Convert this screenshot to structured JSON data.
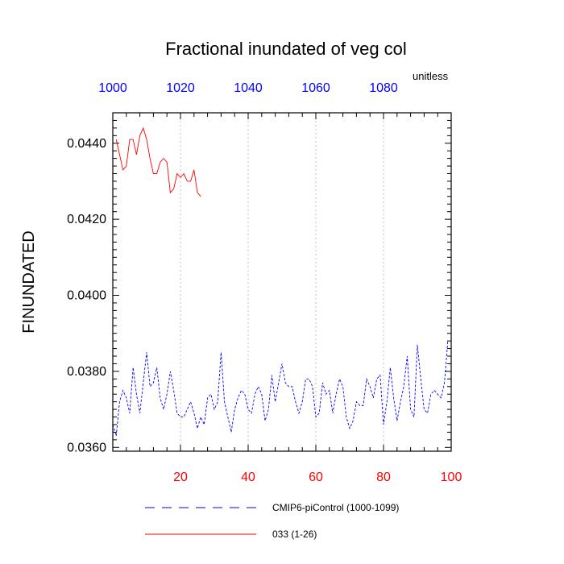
{
  "chart_data": {
    "type": "line",
    "title": "Fractional inundated of veg col",
    "units": "unitless",
    "ylabel": "FINUNDATED",
    "ylim": [
      0.0359,
      0.0448
    ],
    "yticks": [
      "0.0360",
      "0.0380",
      "0.0400",
      "0.0420",
      "0.0440"
    ],
    "ytick_values": [
      0.036,
      0.038,
      0.04,
      0.042,
      0.044
    ],
    "x_bottom": {
      "lim": [
        0,
        100
      ],
      "ticks": [
        20,
        40,
        60,
        80,
        100
      ],
      "color": "#ff0000"
    },
    "x_top": {
      "lim": [
        1000,
        1100
      ],
      "ticks": [
        1000,
        1020,
        1040,
        1060,
        1080
      ],
      "color": "#0000ff"
    },
    "grid": "vertical dashed at top-axis ticks",
    "legend_position": "bottom",
    "series": [
      {
        "name": "CMIP6-piControl (1000-1099)",
        "color": "#0000ff",
        "dash": "dashed",
        "axis": "top",
        "x": [
          1000,
          1001,
          1002,
          1003,
          1004,
          1005,
          1006,
          1007,
          1008,
          1009,
          1010,
          1011,
          1012,
          1013,
          1014,
          1015,
          1016,
          1017,
          1018,
          1019,
          1020,
          1021,
          1022,
          1023,
          1024,
          1025,
          1026,
          1027,
          1028,
          1029,
          1030,
          1031,
          1032,
          1033,
          1034,
          1035,
          1036,
          1037,
          1038,
          1039,
          1040,
          1041,
          1042,
          1043,
          1044,
          1045,
          1046,
          1047,
          1048,
          1049,
          1050,
          1051,
          1052,
          1053,
          1054,
          1055,
          1056,
          1057,
          1058,
          1059,
          1060,
          1061,
          1062,
          1063,
          1064,
          1065,
          1066,
          1067,
          1068,
          1069,
          1070,
          1071,
          1072,
          1073,
          1074,
          1075,
          1076,
          1077,
          1078,
          1079,
          1080,
          1081,
          1082,
          1083,
          1084,
          1085,
          1086,
          1087,
          1088,
          1089,
          1090,
          1091,
          1092,
          1093,
          1094,
          1095,
          1096,
          1097,
          1098,
          1099
        ],
        "values": [
          0.0366,
          0.0363,
          0.0372,
          0.0375,
          0.0373,
          0.0369,
          0.0381,
          0.0374,
          0.0369,
          0.0377,
          0.0385,
          0.0376,
          0.0377,
          0.0381,
          0.0373,
          0.037,
          0.0374,
          0.038,
          0.0375,
          0.0369,
          0.0368,
          0.0368,
          0.037,
          0.0372,
          0.0369,
          0.0365,
          0.0368,
          0.0366,
          0.0373,
          0.0374,
          0.037,
          0.0372,
          0.0385,
          0.0372,
          0.0368,
          0.0364,
          0.037,
          0.0373,
          0.0375,
          0.0374,
          0.037,
          0.0369,
          0.0374,
          0.0376,
          0.0374,
          0.0367,
          0.037,
          0.0379,
          0.0372,
          0.0377,
          0.0382,
          0.0377,
          0.0376,
          0.0376,
          0.0372,
          0.0369,
          0.0372,
          0.0378,
          0.0378,
          0.0376,
          0.0368,
          0.0369,
          0.0377,
          0.0374,
          0.0375,
          0.0369,
          0.0374,
          0.0378,
          0.0376,
          0.0368,
          0.0365,
          0.0367,
          0.0372,
          0.0371,
          0.0371,
          0.0378,
          0.0376,
          0.0373,
          0.0378,
          0.0379,
          0.0366,
          0.0372,
          0.0381,
          0.0373,
          0.0367,
          0.0372,
          0.0376,
          0.0384,
          0.037,
          0.0368,
          0.0387,
          0.0378,
          0.037,
          0.0369,
          0.0374,
          0.0375,
          0.0374,
          0.0373,
          0.0377,
          0.0388
        ]
      },
      {
        "name": "033 (1-26)",
        "color": "#ff0000",
        "dash": "solid",
        "axis": "bottom",
        "x": [
          1,
          2,
          3,
          4,
          5,
          6,
          7,
          8,
          9,
          10,
          11,
          12,
          13,
          14,
          15,
          16,
          17,
          18,
          19,
          20,
          21,
          22,
          23,
          24,
          25,
          26
        ],
        "values": [
          0.0441,
          0.0437,
          0.0433,
          0.0434,
          0.0441,
          0.0441,
          0.0437,
          0.0442,
          0.0444,
          0.0441,
          0.0436,
          0.0432,
          0.0432,
          0.0435,
          0.0436,
          0.0435,
          0.0427,
          0.0428,
          0.0432,
          0.0431,
          0.0432,
          0.043,
          0.043,
          0.0433,
          0.0427,
          0.0426
        ]
      }
    ]
  }
}
